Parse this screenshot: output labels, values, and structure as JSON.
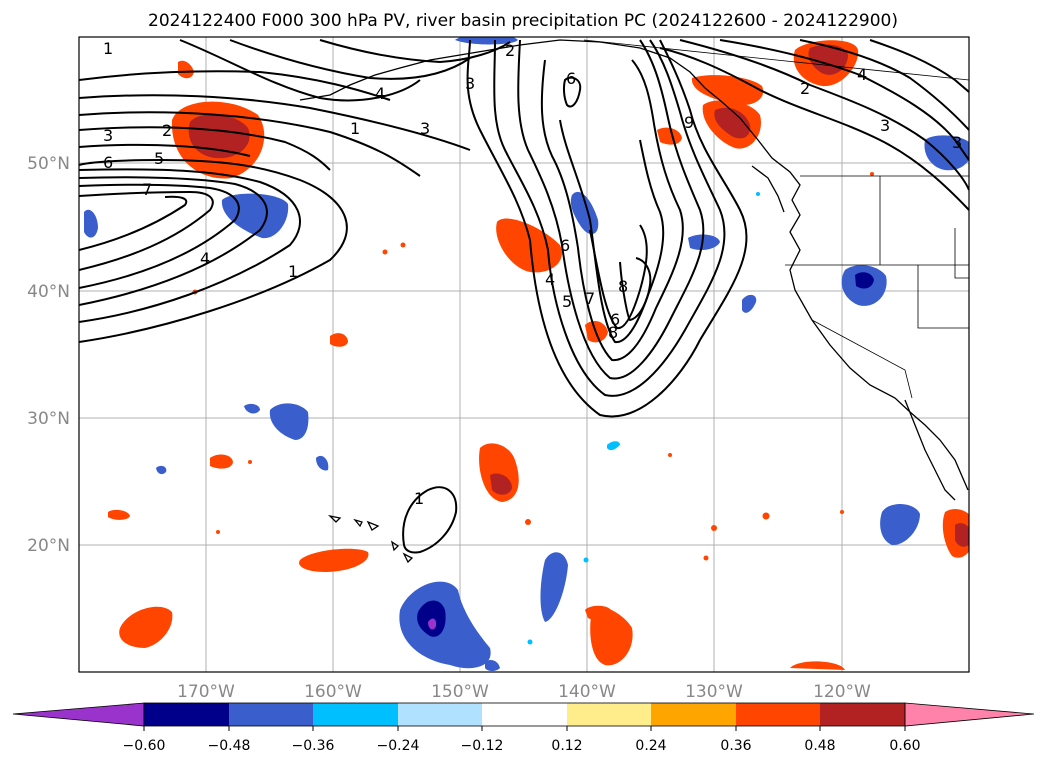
{
  "title": "2024122400 F000 300 hPa PV, river basin precipitation PC (2024122600 - 2024122900)",
  "lat_labels": [
    "50°N",
    "40°N",
    "30°N",
    "20°N"
  ],
  "lon_labels": [
    "170°W",
    "160°W",
    "150°W",
    "140°W",
    "130°W",
    "120°W"
  ],
  "colorbar": {
    "colors": [
      "#9933cc",
      "#00008b",
      "#3a5fcd",
      "#00bfff",
      "#b0e2ff",
      "#ffffff",
      "#ffec8b",
      "#ffa500",
      "#ff4500",
      "#b22222",
      "#ff82ab"
    ],
    "tick_labels": [
      "−0.60",
      "−0.48",
      "−0.36",
      "−0.24",
      "−0.12",
      "0.12",
      "0.24",
      "0.36",
      "0.48",
      "0.60"
    ]
  },
  "contour_labels": [
    {
      "id": "pv-1-nw",
      "text": "1"
    },
    {
      "id": "pv-3-w",
      "text": "3"
    },
    {
      "id": "pv-2-w",
      "text": "2"
    },
    {
      "id": "pv-5-w",
      "text": "5"
    },
    {
      "id": "pv-6-w",
      "text": "6"
    },
    {
      "id": "pv-7-w",
      "text": "7"
    },
    {
      "id": "pv-4-w",
      "text": "4"
    },
    {
      "id": "pv-1-w",
      "text": "1"
    },
    {
      "id": "pv-1-c",
      "text": "1"
    },
    {
      "id": "pv-3-c",
      "text": "3"
    },
    {
      "id": "pv-4-c",
      "text": "4"
    },
    {
      "id": "pv-3-n",
      "text": "3"
    },
    {
      "id": "pv-2-n",
      "text": "2"
    },
    {
      "id": "pv-6-n",
      "text": "6"
    },
    {
      "id": "pv-9-e",
      "text": "9"
    },
    {
      "id": "pv-6-t",
      "text": "6"
    },
    {
      "id": "pv-4-t",
      "text": "4"
    },
    {
      "id": "pv-5-t",
      "text": "5"
    },
    {
      "id": "pv-7-t",
      "text": "7"
    },
    {
      "id": "pv-8-t",
      "text": "8"
    },
    {
      "id": "pv-6-t2",
      "text": "6"
    },
    {
      "id": "pv-8-t2",
      "text": "8"
    },
    {
      "id": "pv-2-ne",
      "text": "2"
    },
    {
      "id": "pv-4-ne",
      "text": "4"
    },
    {
      "id": "pv-3-ne",
      "text": "3"
    },
    {
      "id": "pv-3-ne2",
      "text": "3"
    },
    {
      "id": "pv-1-s",
      "text": "1"
    }
  ]
}
